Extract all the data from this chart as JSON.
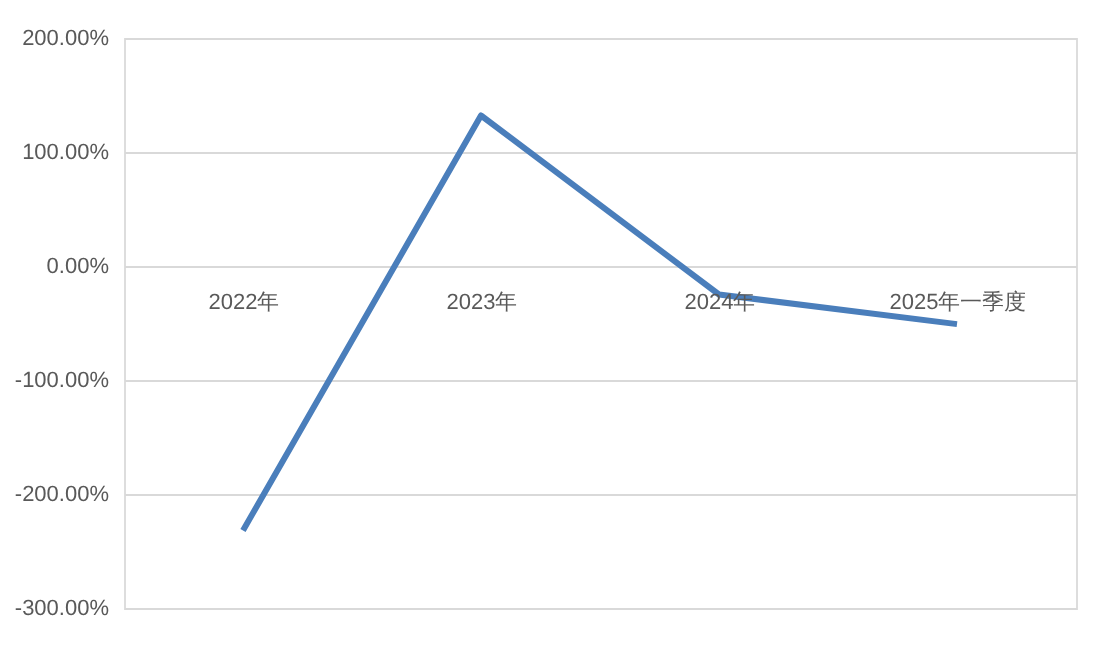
{
  "chart_data": {
    "type": "line",
    "categories": [
      "2022年",
      "2023年",
      "2024年",
      "2025年一季度"
    ],
    "series": [
      {
        "color": "#4a7ebb",
        "values": [
          -232,
          132,
          -25,
          -51
        ]
      }
    ],
    "ylim": [
      -300,
      200
    ],
    "yticks": [
      {
        "value": -300,
        "label": "-300.00%"
      },
      {
        "value": -200,
        "label": "-200.00%"
      },
      {
        "value": -100,
        "label": "-100.00%"
      },
      {
        "value": 0,
        "label": "0.00%"
      },
      {
        "value": 100,
        "label": "100.00%"
      },
      {
        "value": 200,
        "label": "200.00%"
      }
    ],
    "grid": "y",
    "marker": "none",
    "line_style": "solid"
  }
}
